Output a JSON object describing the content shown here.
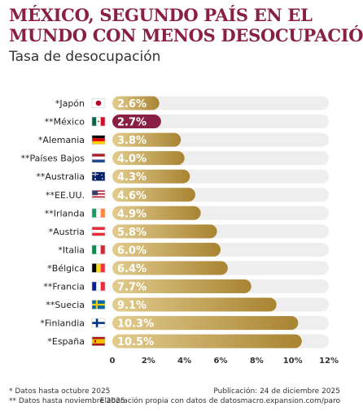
{
  "title_lines": [
    "MÉXICO, SEGUNDO PAÍS EN EL",
    "MUNDO CON MENOS DESOCUPACIÓN"
  ],
  "subtitle": "Tasa de desocupación",
  "colors": {
    "title": "#8a1f45",
    "highlight_bar": "#8a1f45",
    "bar_gold_light": "#e2cc8e",
    "bar_gold_dark": "#a88432",
    "track": "#eeeeee"
  },
  "footnotes": {
    "left": [
      "* Datos hasta octubre 2025",
      "** Datos hasta noviembre 2025"
    ],
    "right": [
      "Publicación: 24 de diciembre 2025",
      "Elaboración propia con datos de datosmacro.expansion.com/paro"
    ]
  },
  "chart_data": {
    "type": "bar",
    "orientation": "horizontal",
    "categories": [
      "*Japón",
      "**México",
      "*Alemania",
      "**Países Bajos",
      "**Australia",
      "**EE.UU.",
      "**Irlanda",
      "*Austria",
      "*Italia",
      "*Bélgica",
      "**Francia",
      "**Suecia",
      "*Finlandia",
      "*España"
    ],
    "flags": [
      "japan-flag",
      "mexico-flag",
      "germany-flag",
      "netherlands-flag",
      "australia-flag",
      "usa-flag",
      "ireland-flag",
      "austria-flag",
      "italy-flag",
      "belgium-flag",
      "france-flag",
      "sweden-flag",
      "finland-flag",
      "spain-flag"
    ],
    "values": [
      2.6,
      2.7,
      3.8,
      4.0,
      4.3,
      4.6,
      4.9,
      5.8,
      6.0,
      6.4,
      7.7,
      9.1,
      10.3,
      10.5
    ],
    "labels": [
      "2.6%",
      "2.7%",
      "3.8%",
      "4.0%",
      "4.3%",
      "4.6%",
      "4.9%",
      "5.8%",
      "6.0%",
      "6.4%",
      "7.7%",
      "9.1%",
      "10.3%",
      "10.5%"
    ],
    "highlight": "**México",
    "x_ticks": [
      0,
      2,
      4,
      6,
      8,
      10,
      12
    ],
    "x_tick_labels": [
      "0",
      "2%",
      "4%",
      "6%",
      "8%",
      "10%",
      "12%"
    ],
    "xlim": [
      0,
      12
    ],
    "title": "",
    "xlabel": "",
    "ylabel": ""
  }
}
